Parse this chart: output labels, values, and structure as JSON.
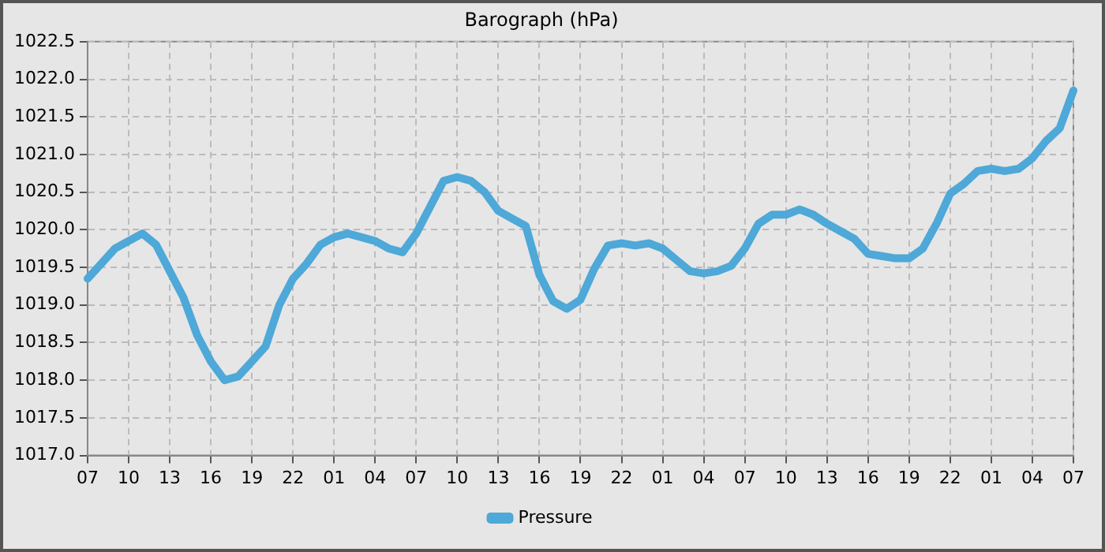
{
  "chart_data": {
    "type": "line",
    "title": "Barograph (hPa)",
    "categories": [
      "07",
      null,
      null,
      "10",
      null,
      null,
      "13",
      null,
      null,
      "16",
      null,
      null,
      "19",
      null,
      null,
      "22",
      null,
      null,
      "01",
      null,
      null,
      "04",
      null,
      null,
      "07",
      null,
      null,
      "10",
      null,
      null,
      "13",
      null,
      null,
      "16",
      null,
      null,
      "19",
      null,
      null,
      "22",
      null,
      null,
      "01",
      null,
      null,
      "04",
      null,
      null,
      "07",
      null,
      null,
      "10",
      null,
      null,
      "13",
      null,
      null,
      "16",
      null,
      null,
      "19",
      null,
      null,
      "22",
      null,
      null,
      "01",
      null,
      null,
      "04",
      null,
      null,
      "07"
    ],
    "series": [
      {
        "name": "Pressure",
        "color": "#4ea8d8",
        "values": [
          1019.35,
          1019.55,
          1019.75,
          1019.85,
          1019.95,
          1019.8,
          1019.45,
          1019.1,
          1018.6,
          1018.25,
          1018.0,
          1018.05,
          1018.25,
          1018.45,
          1019.0,
          1019.35,
          1019.55,
          1019.8,
          1019.9,
          1019.95,
          1019.9,
          1019.85,
          1019.75,
          1019.7,
          1019.95,
          1020.3,
          1020.65,
          1020.7,
          1020.65,
          1020.5,
          1020.25,
          1020.15,
          1020.05,
          1019.4,
          1019.05,
          1018.95,
          1019.07,
          1019.48,
          1019.79,
          1019.82,
          1019.79,
          1019.82,
          1019.75,
          1019.6,
          1019.45,
          1019.42,
          1019.45,
          1019.52,
          1019.75,
          1020.08,
          1020.2,
          1020.2,
          1020.27,
          1020.2,
          1020.08,
          1019.98,
          1019.88,
          1019.68,
          1019.65,
          1019.62,
          1019.62,
          1019.75,
          1020.08,
          1020.48,
          1020.61,
          1020.78,
          1020.81,
          1020.78,
          1020.81,
          1020.95,
          1021.18,
          1021.35,
          1021.85
        ]
      }
    ],
    "ylim": [
      1017.0,
      1022.5
    ],
    "yticks": [
      {
        "value": 1017.0,
        "label": "1017.0"
      },
      {
        "value": 1017.5,
        "label": "1017.5"
      },
      {
        "value": 1018.0,
        "label": "1018.0"
      },
      {
        "value": 1018.5,
        "label": "1018.5"
      },
      {
        "value": 1019.0,
        "label": "1019.0"
      },
      {
        "value": 1019.5,
        "label": "1019.5"
      },
      {
        "value": 1020.0,
        "label": "1020.0"
      },
      {
        "value": 1020.5,
        "label": "1020.5"
      },
      {
        "value": 1021.0,
        "label": "1021.0"
      },
      {
        "value": 1021.5,
        "label": "1021.5"
      },
      {
        "value": 1022.0,
        "label": "1022.0"
      },
      {
        "value": 1022.5,
        "label": "1022.5"
      }
    ],
    "grid": true,
    "legend": "bottom",
    "marker": "none",
    "line_style": "solid"
  }
}
